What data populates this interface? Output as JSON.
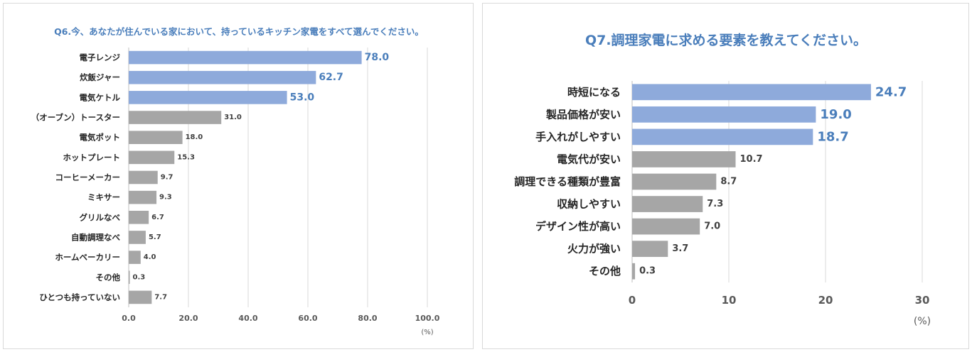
{
  "colors": {
    "highlight_bar": "#8eaadb",
    "normal_bar": "#a6a6a6",
    "title": "#4a7ebb",
    "highlight_label": "#4a7ebb",
    "normal_label": "#404040"
  },
  "chart_data": [
    {
      "type": "bar",
      "orientation": "horizontal",
      "title": "Q6.今、あなたが住んでいる家において、持っているキッチン家電をすべて選んでください。",
      "categories": [
        "電子レンジ",
        "炊飯ジャー",
        "電気ケトル",
        "（オーブン）トースター",
        "電気ポット",
        "ホットプレート",
        "コーヒーメーカー",
        "ミキサー",
        "グリルなべ",
        "自動調理なべ",
        "ホームベーカリー",
        "その他",
        "ひとつも持っていない"
      ],
      "values": [
        78.0,
        62.7,
        53.0,
        31.0,
        18.0,
        15.3,
        9.7,
        9.3,
        6.7,
        5.7,
        4.0,
        0.3,
        7.7
      ],
      "value_labels": [
        "78.0",
        "62.7",
        "53.0",
        "31.0",
        "18.0",
        "15.3",
        "9.7",
        "9.3",
        "6.7",
        "5.7",
        "4.0",
        "0.3",
        "7.7"
      ],
      "highlighted": [
        true,
        true,
        true,
        false,
        false,
        false,
        false,
        false,
        false,
        false,
        false,
        false,
        false
      ],
      "xlim": [
        0,
        100
      ],
      "ticks": [
        "0.0",
        "20.0",
        "40.0",
        "60.0",
        "80.0",
        "100.0"
      ],
      "tick_values": [
        0,
        20,
        40,
        60,
        80,
        100
      ],
      "unit": "(%)",
      "grid": true
    },
    {
      "type": "bar",
      "orientation": "horizontal",
      "title": "Q7.調理家電に求める要素を教えてください。",
      "categories": [
        "時短になる",
        "製品価格が安い",
        "手入れがしやすい",
        "電気代が安い",
        "調理できる種類が豊富",
        "収納しやすい",
        "デザイン性が高い",
        "火力が強い",
        "その他"
      ],
      "values": [
        24.7,
        19.0,
        18.7,
        10.7,
        8.7,
        7.3,
        7.0,
        3.7,
        0.3
      ],
      "value_labels": [
        "24.7",
        "19.0",
        "18.7",
        "10.7",
        "8.7",
        "7.3",
        "7.0",
        "3.7",
        "0.3"
      ],
      "highlighted": [
        true,
        true,
        true,
        false,
        false,
        false,
        false,
        false,
        false
      ],
      "xlim": [
        0,
        30
      ],
      "ticks": [
        "0",
        "10",
        "20",
        "30"
      ],
      "tick_values": [
        0,
        10,
        20,
        30
      ],
      "unit": "(%)",
      "grid": true
    }
  ]
}
